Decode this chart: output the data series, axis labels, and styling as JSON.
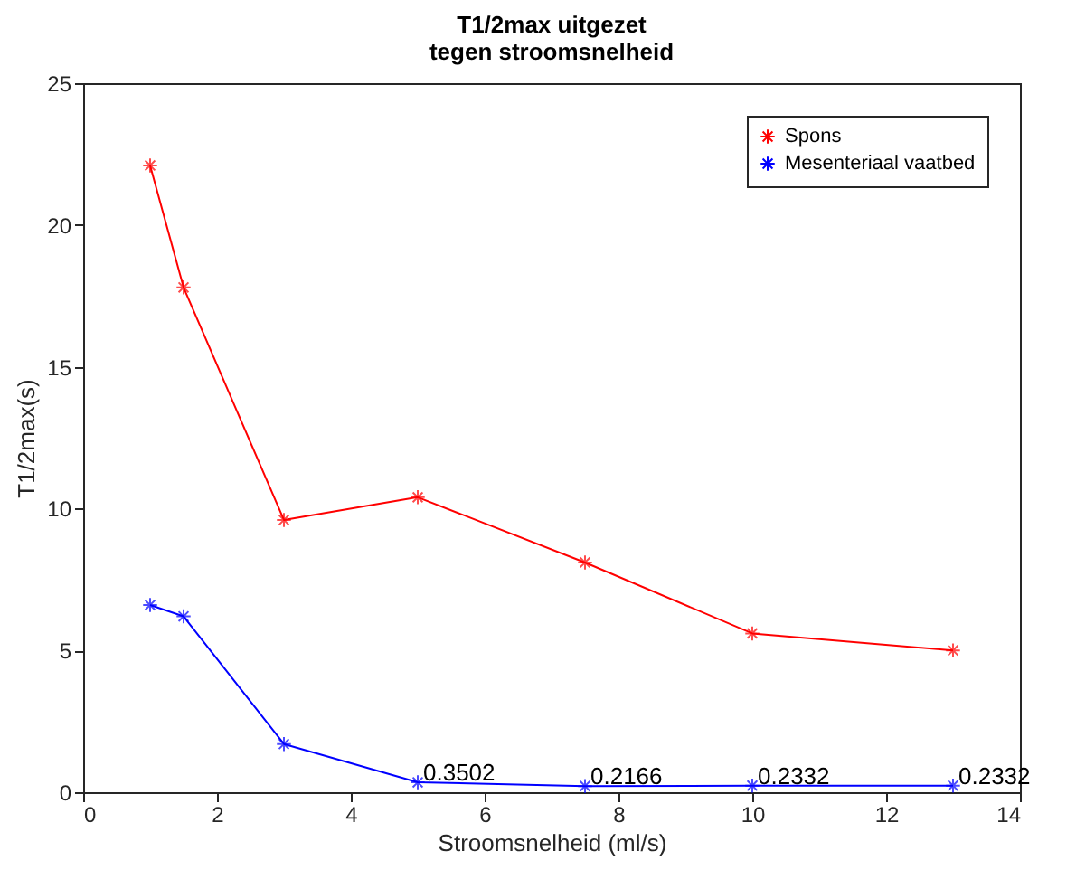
{
  "chart_data": {
    "type": "line",
    "title": "T1/2max uitgezet\ntegen stroomsnelheid",
    "xlabel": "Stroomsnelheid (ml/s)",
    "ylabel": "T1/2max(s)",
    "x": [
      1,
      1.5,
      3,
      5,
      7.5,
      10,
      13
    ],
    "series": [
      {
        "name": "Spons",
        "color": "#ff0000",
        "values": [
          22.1,
          17.8,
          9.6,
          10.4,
          8.1,
          5.6,
          5.0
        ]
      },
      {
        "name": "Mesenteriaal vaatbed",
        "color": "#0000ff",
        "values": [
          6.6,
          6.2,
          1.7,
          0.3502,
          0.2166,
          0.2332,
          0.2332
        ]
      }
    ],
    "annotations": [
      {
        "text": "0.3502",
        "x": 5,
        "y": 0.3502
      },
      {
        "text": "0.2166",
        "x": 7.5,
        "y": 0.2166
      },
      {
        "text": "0.2332",
        "x": 10,
        "y": 0.2332
      },
      {
        "text": "0.2332",
        "x": 13,
        "y": 0.2332
      }
    ],
    "xlim": [
      0,
      14
    ],
    "xticks": [
      0,
      2,
      4,
      6,
      8,
      10,
      12,
      14
    ],
    "ylim": [
      0,
      25
    ],
    "yticks": [
      0,
      5,
      10,
      15,
      20,
      25
    ],
    "grid": false,
    "legend": "top right",
    "marker": "cross",
    "line_style": "solid"
  }
}
